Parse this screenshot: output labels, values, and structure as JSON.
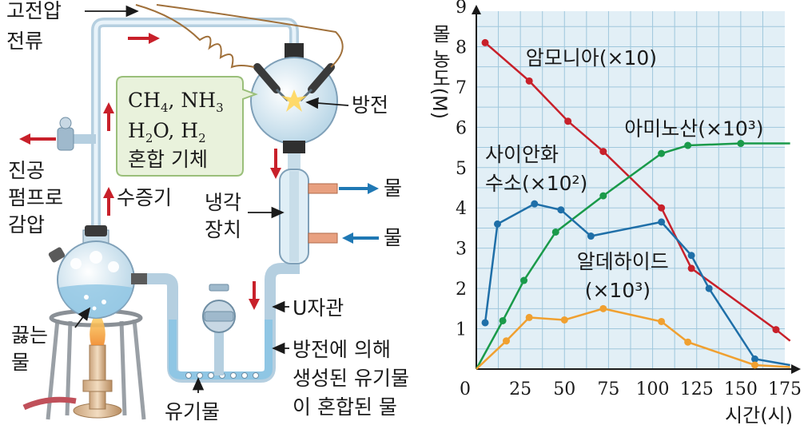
{
  "apparatus": {
    "labels": {
      "high_voltage": [
        "고전압",
        "전류"
      ],
      "vacuum": [
        "진공",
        "펌프로",
        "감압"
      ],
      "steam": "수증기",
      "boiling": [
        "끓는",
        "물"
      ],
      "organics": "유기물",
      "discharge": "방전",
      "condenser": [
        "냉각",
        "장치"
      ],
      "water_out": "물",
      "water_in": "물",
      "u_tube": "U자관",
      "result": [
        "방전에 의해",
        "생성된 유기물",
        "이 혼합된 물"
      ]
    },
    "gas_box": {
      "line1_a": "CH",
      "line1_a_sub": "4",
      "line1_b": ", NH",
      "line1_b_sub": "3",
      "line2_a": "H",
      "line2_a_sub": "2",
      "line2_b": "O, H",
      "line2_b_sub": "2",
      "line3": "혼합 기체"
    },
    "colors": {
      "arrow": "#c8202a",
      "water_arrow": "#1f78b4",
      "glass": "#dfeef6",
      "tube": "#b5cfe0",
      "box": "#e9f2dc"
    }
  },
  "chart_data": {
    "type": "line",
    "ylabel": "몰 농도(M)",
    "xlabel": "시간(시)",
    "xlim": [
      0,
      175
    ],
    "ylim": [
      0,
      9
    ],
    "xticks": [
      "0",
      "25",
      "50",
      "75",
      "100",
      "125",
      "150",
      "175"
    ],
    "xtick_values": [
      0,
      25,
      50,
      75,
      100,
      125,
      150,
      175
    ],
    "yticks": [
      "1",
      "2",
      "3",
      "4",
      "5",
      "6",
      "7",
      "8",
      "9"
    ],
    "ytick_values": [
      1,
      2,
      3,
      4,
      5,
      6,
      7,
      8,
      9
    ],
    "grid": true,
    "background": "#e2eff6",
    "series": [
      {
        "name": "암모니아(×10)",
        "label_line1": "암모니아(×10)",
        "label_line2": "",
        "color": "#c8202a",
        "x": [
          5,
          30,
          52,
          72,
          105,
          122,
          170,
          178
        ],
        "y": [
          8.1,
          7.15,
          6.15,
          5.4,
          4.0,
          2.5,
          0.98,
          0.7
        ]
      },
      {
        "name": "아미노산(×10³)",
        "label_line1": "아미노산(×10³)",
        "label_line2": "",
        "color": "#1a9a4a",
        "x": [
          0,
          15,
          27,
          45,
          72,
          105,
          120,
          150,
          178
        ],
        "y": [
          0,
          1.2,
          2.2,
          3.4,
          4.3,
          5.35,
          5.55,
          5.6,
          5.6
        ]
      },
      {
        "name": "사이안화 수소(×10²)",
        "label_line1": "사이안화",
        "label_line2": "수소(×10²)",
        "color": "#1f6fa8",
        "x": [
          5,
          12,
          33,
          48,
          65,
          105,
          122,
          132,
          158,
          178
        ],
        "y": [
          1.15,
          3.6,
          4.1,
          3.95,
          3.3,
          3.65,
          2.82,
          2.0,
          0.25,
          0.1
        ]
      },
      {
        "name": "알데하이드(×10³)",
        "label_line1": "알데하이드",
        "label_line2": "(×10³)",
        "color": "#f0a030",
        "x": [
          0,
          17,
          30,
          50,
          72,
          105,
          120,
          158,
          178
        ],
        "y": [
          0,
          0.7,
          1.28,
          1.22,
          1.5,
          1.18,
          0.67,
          0.1,
          0.05
        ]
      }
    ]
  }
}
